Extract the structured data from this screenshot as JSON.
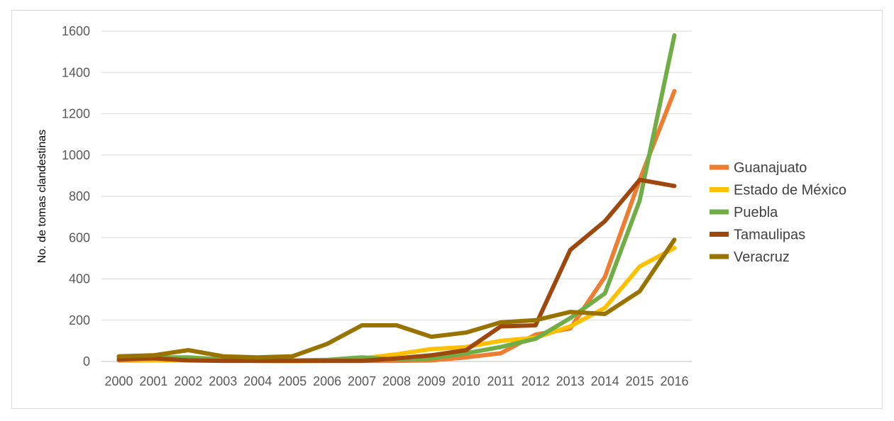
{
  "chart_data": {
    "type": "line",
    "title": "",
    "xlabel": "",
    "ylabel": "No. de tomas clandestinas",
    "ylim": [
      0,
      1600
    ],
    "yticks": [
      0,
      200,
      400,
      600,
      800,
      1000,
      1200,
      1400,
      1600
    ],
    "grid": "horizontal",
    "legend_position": "right",
    "x": [
      "2000",
      "2001",
      "2002",
      "2003",
      "2004",
      "2005",
      "2006",
      "2007",
      "2008",
      "2009",
      "2010",
      "2011",
      "2012",
      "2013",
      "2014",
      "2015",
      "2016"
    ],
    "series": [
      {
        "name": "Guanajuato",
        "color": "#ED7D31",
        "values": [
          5,
          5,
          5,
          5,
          3,
          2,
          3,
          3,
          3,
          5,
          20,
          40,
          130,
          160,
          410,
          880,
          1310
        ]
      },
      {
        "name": "Estado de México",
        "color": "#FFC000",
        "values": [
          10,
          5,
          5,
          5,
          3,
          2,
          3,
          15,
          35,
          60,
          70,
          100,
          115,
          170,
          260,
          460,
          550
        ]
      },
      {
        "name": "Puebla",
        "color": "#70AD47",
        "values": [
          20,
          20,
          20,
          10,
          5,
          5,
          8,
          20,
          10,
          15,
          40,
          70,
          110,
          210,
          330,
          780,
          1580
        ]
      },
      {
        "name": "Tamaulipas",
        "color": "#9E480E",
        "values": [
          10,
          15,
          5,
          3,
          3,
          3,
          3,
          3,
          15,
          30,
          55,
          170,
          175,
          540,
          680,
          880,
          850
        ]
      },
      {
        "name": "Veracruz",
        "color": "#997300",
        "values": [
          25,
          30,
          55,
          25,
          20,
          25,
          85,
          175,
          175,
          120,
          140,
          190,
          200,
          240,
          230,
          340,
          590
        ]
      }
    ]
  }
}
